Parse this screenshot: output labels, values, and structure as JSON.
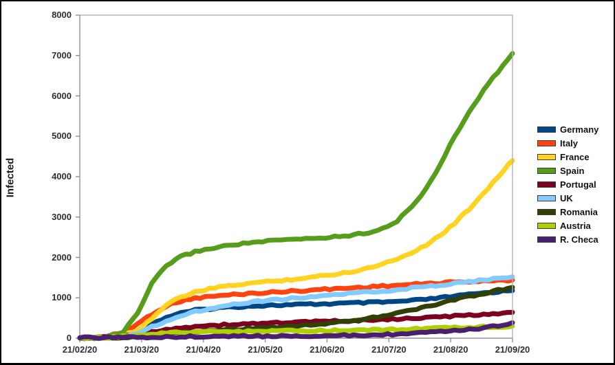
{
  "figure": {
    "y_axis_title": "Infected"
  },
  "chart_data": {
    "type": "line",
    "title": "",
    "xlabel": "",
    "ylabel": "Infected",
    "ylim": [
      0,
      8000
    ],
    "y_ticks": [
      0,
      1000,
      2000,
      3000,
      4000,
      5000,
      6000,
      7000,
      8000
    ],
    "x_tick_labels": [
      "21/02/20",
      "21/03/20",
      "21/04/20",
      "21/05/20",
      "21/06/20",
      "21/07/20",
      "21/08/20",
      "21/09/20"
    ],
    "grid": false,
    "legend_position": "right",
    "sampling": "weekly estimated values from 21/02/20 to 21/09/20 (31 points per series)",
    "series": [
      {
        "name": "Germany",
        "color": "#004586",
        "values": [
          5,
          10,
          20,
          60,
          150,
          350,
          520,
          620,
          690,
          730,
          760,
          780,
          800,
          810,
          820,
          830,
          840,
          850,
          860,
          870,
          880,
          890,
          905,
          930,
          960,
          1000,
          1040,
          1080,
          1120,
          1150,
          1180
        ]
      },
      {
        "name": "Italy",
        "color": "#FF420E",
        "values": [
          10,
          15,
          50,
          150,
          350,
          600,
          800,
          920,
          990,
          1030,
          1060,
          1090,
          1110,
          1130,
          1150,
          1170,
          1190,
          1210,
          1230,
          1250,
          1270,
          1290,
          1310,
          1330,
          1350,
          1370,
          1390,
          1400,
          1410,
          1425,
          1440
        ]
      },
      {
        "name": "France",
        "color": "#FFD320",
        "values": [
          5,
          10,
          25,
          80,
          200,
          500,
          820,
          1020,
          1140,
          1220,
          1280,
          1330,
          1370,
          1400,
          1430,
          1470,
          1510,
          1550,
          1600,
          1660,
          1740,
          1840,
          1970,
          2120,
          2310,
          2550,
          2850,
          3200,
          3600,
          4000,
          4400
        ]
      },
      {
        "name": "Spain",
        "color": "#579D1C",
        "values": [
          10,
          15,
          40,
          150,
          600,
          1350,
          1800,
          2020,
          2140,
          2220,
          2280,
          2330,
          2370,
          2400,
          2430,
          2450,
          2470,
          2490,
          2520,
          2560,
          2620,
          2720,
          2900,
          3250,
          3700,
          4300,
          5000,
          5600,
          6150,
          6600,
          7050
        ]
      },
      {
        "name": "Portugal",
        "color": "#7E0021",
        "values": [
          5,
          10,
          20,
          40,
          90,
          160,
          220,
          260,
          290,
          310,
          330,
          345,
          360,
          375,
          385,
          395,
          405,
          415,
          425,
          435,
          450,
          462,
          475,
          490,
          508,
          527,
          547,
          568,
          590,
          614,
          640
        ]
      },
      {
        "name": "UK",
        "color": "#83CAFF",
        "values": [
          0,
          5,
          15,
          40,
          120,
          280,
          430,
          560,
          660,
          740,
          805,
          855,
          900,
          935,
          965,
          995,
          1025,
          1055,
          1085,
          1110,
          1140,
          1170,
          1200,
          1240,
          1280,
          1320,
          1360,
          1400,
          1440,
          1480,
          1520
        ]
      },
      {
        "name": "Romania",
        "color": "#314004",
        "values": [
          0,
          5,
          10,
          20,
          45,
          80,
          115,
          140,
          165,
          185,
          205,
          225,
          245,
          265,
          285,
          305,
          335,
          365,
          400,
          440,
          490,
          550,
          620,
          700,
          780,
          860,
          950,
          1030,
          1110,
          1190,
          1260
        ]
      },
      {
        "name": "Austria",
        "color": "#AECF00",
        "values": [
          5,
          10,
          20,
          45,
          80,
          110,
          130,
          142,
          150,
          156,
          160,
          164,
          168,
          172,
          176,
          180,
          184,
          188,
          192,
          196,
          202,
          210,
          218,
          227,
          236,
          246,
          256,
          266,
          277,
          288,
          300
        ]
      },
      {
        "name": "R. Checa",
        "color": "#4B1F6F",
        "values": [
          10,
          12,
          15,
          20,
          25,
          30,
          34,
          38,
          41,
          44,
          46,
          48,
          50,
          52,
          54,
          56,
          58,
          61,
          65,
          70,
          78,
          88,
          100,
          115,
          133,
          155,
          182,
          215,
          255,
          310,
          385
        ]
      }
    ]
  }
}
